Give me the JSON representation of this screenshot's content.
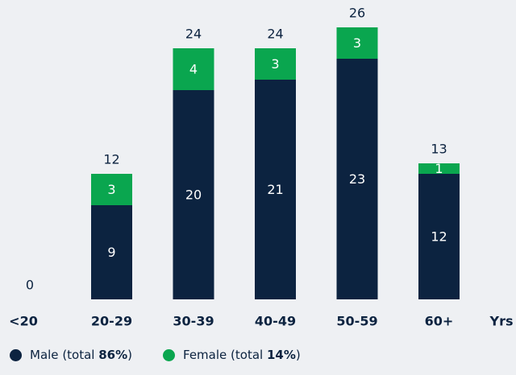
{
  "chart_data": {
    "type": "stacked-bar",
    "categories": [
      "<20",
      "20-29",
      "30-39",
      "40-49",
      "50-59",
      "60+"
    ],
    "x_unit": "Yrs",
    "series": [
      {
        "name": "Male",
        "color": "#0c2340",
        "values": [
          0,
          9,
          20,
          21,
          23,
          12
        ],
        "note_open": "(total",
        "share": "86%",
        "note_close": ")"
      },
      {
        "name": "Female",
        "color": "#0aa64f",
        "values": [
          0,
          3,
          4,
          3,
          3,
          1
        ],
        "note_open": "(total",
        "share": "14%",
        "note_close": ")"
      }
    ],
    "totals": [
      0,
      12,
      24,
      24,
      26,
      13
    ],
    "ylim": [
      0,
      26
    ]
  }
}
